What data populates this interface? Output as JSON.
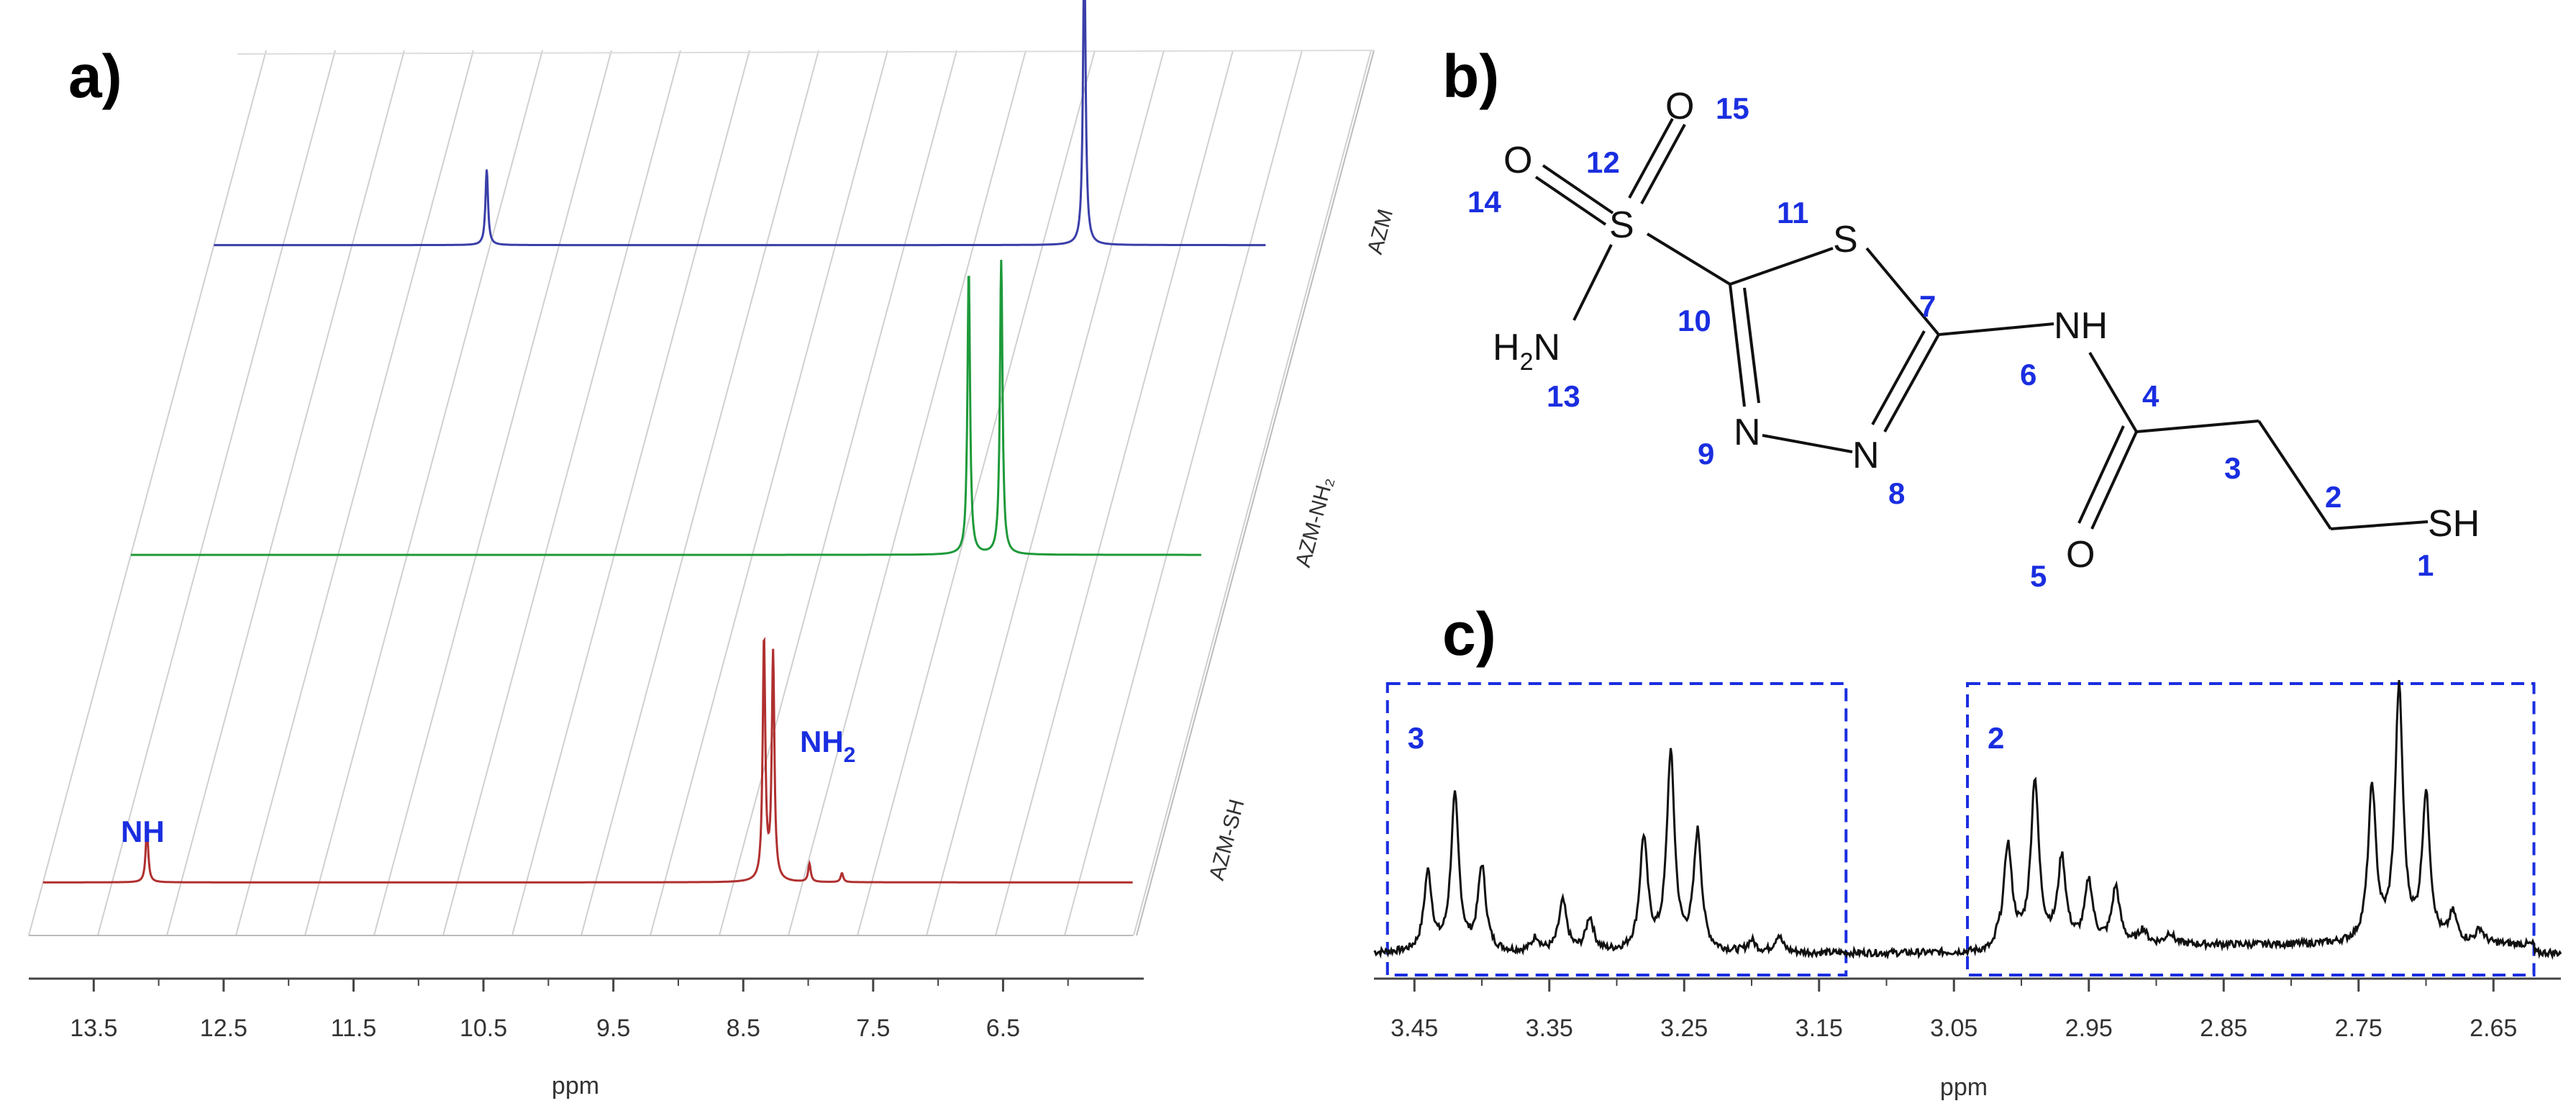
{
  "colors": {
    "azm": "#3a3fa8",
    "azm_nh2": "#1e9a3a",
    "azm_sh": "#b03030",
    "annotation": "#1a2ee0",
    "box": "#1a2ee0",
    "black": "#111111",
    "grid": "#d0d0d0"
  },
  "panel_a": {
    "label": "a)",
    "chart_data": {
      "type": "line",
      "xlabel": "ppm",
      "x_ticks": [
        "13.5",
        "12.5",
        "11.5",
        "10.5",
        "9.5",
        "8.5",
        "7.5",
        "6.5"
      ],
      "xlim": [
        14.0,
        5.5
      ],
      "series": [
        {
          "name": "AZM",
          "peaks": [
            {
              "ppm": 11.9,
              "height": 0.25
            },
            {
              "ppm": 7.3,
              "height": 1.0
            }
          ]
        },
        {
          "name": "AZM-NH₂",
          "peaks": [
            {
              "ppm": 7.55,
              "height": 0.9
            },
            {
              "ppm": 7.3,
              "height": 0.93
            }
          ]
        },
        {
          "name": "AZM-SH",
          "peaks": [
            {
              "ppm": 13.2,
              "height": 0.18
            },
            {
              "ppm": 8.45,
              "height": 0.8
            },
            {
              "ppm": 8.38,
              "height": 0.75
            },
            {
              "ppm": 8.1,
              "height": 0.06
            },
            {
              "ppm": 7.85,
              "height": 0.03
            }
          ]
        }
      ],
      "annotations": {
        "nh": "NH",
        "nh2_main": "NH",
        "nh2_sub": "2"
      }
    }
  },
  "panel_b": {
    "label": "b)",
    "atoms": {
      "o_top": "O",
      "o_left": "O",
      "s_sulfonyl": "S",
      "s_ring": "S",
      "h2n_h": "H",
      "h2n_2": "2",
      "h2n_n": "N",
      "n9": "N",
      "n8": "N",
      "nh": "NH",
      "o5": "O",
      "sh": "SH"
    },
    "numbers": [
      "1",
      "2",
      "3",
      "4",
      "5",
      "6",
      "7",
      "8",
      "9",
      "10",
      "11",
      "12",
      "13",
      "14",
      "15"
    ]
  },
  "panel_c": {
    "label": "c)",
    "chart_data": {
      "type": "line",
      "xlabel": "ppm",
      "x_ticks": [
        "3.45",
        "3.35",
        "3.25",
        "3.15",
        "3.05",
        "2.95",
        "2.85",
        "2.75",
        "2.65"
      ],
      "xlim": [
        3.48,
        2.6
      ],
      "boxes": [
        {
          "label": "3",
          "from": 3.47,
          "to": 3.13
        },
        {
          "label": "2",
          "from": 3.04,
          "to": 2.62
        }
      ],
      "peaks": [
        {
          "ppm": 3.44,
          "height": 0.28
        },
        {
          "ppm": 3.42,
          "height": 0.55
        },
        {
          "ppm": 3.4,
          "height": 0.3
        },
        {
          "ppm": 3.36,
          "height": 0.05
        },
        {
          "ppm": 3.34,
          "height": 0.18
        },
        {
          "ppm": 3.32,
          "height": 0.12
        },
        {
          "ppm": 3.28,
          "height": 0.4
        },
        {
          "ppm": 3.26,
          "height": 0.7
        },
        {
          "ppm": 3.24,
          "height": 0.42
        },
        {
          "ppm": 3.2,
          "height": 0.04
        },
        {
          "ppm": 3.18,
          "height": 0.06
        },
        {
          "ppm": 3.01,
          "height": 0.35
        },
        {
          "ppm": 2.99,
          "height": 0.58
        },
        {
          "ppm": 2.97,
          "height": 0.3
        },
        {
          "ppm": 2.95,
          "height": 0.22
        },
        {
          "ppm": 2.93,
          "height": 0.2
        },
        {
          "ppm": 2.91,
          "height": 0.05
        },
        {
          "ppm": 2.89,
          "height": 0.04
        },
        {
          "ppm": 2.74,
          "height": 0.55
        },
        {
          "ppm": 2.72,
          "height": 0.9
        },
        {
          "ppm": 2.7,
          "height": 0.52
        },
        {
          "ppm": 2.68,
          "height": 0.1
        },
        {
          "ppm": 2.66,
          "height": 0.05
        }
      ]
    }
  }
}
